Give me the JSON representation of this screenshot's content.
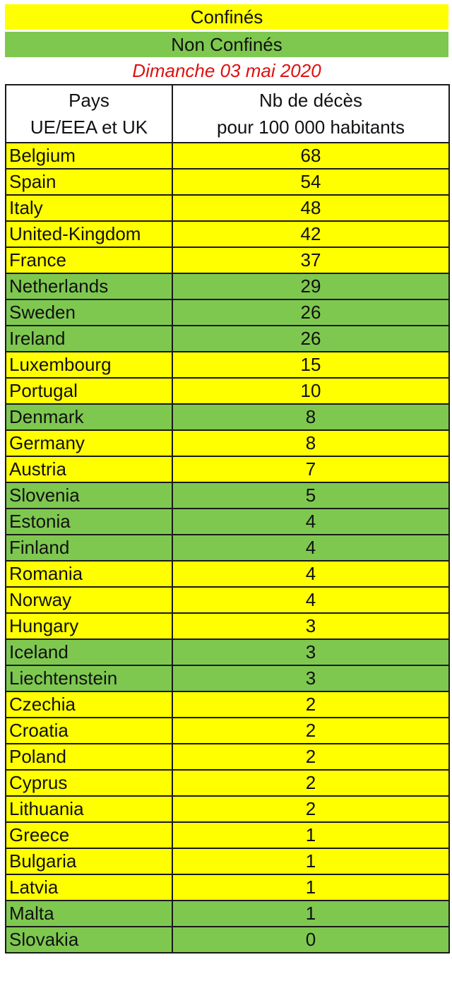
{
  "legend": {
    "confined_label": "Confinés",
    "not_confined_label": "Non Confinés",
    "confined_color": "#ffff00",
    "not_confined_color": "#7ec850"
  },
  "date": "Dimanche 03 mai 2020",
  "table": {
    "header_country_line1": "Pays",
    "header_country_line2": "UE/EEA et UK",
    "header_value_line1": "Nb de décès",
    "header_value_line2": "pour 100 000 habitants",
    "rows": [
      {
        "country": "Belgium",
        "deaths": "68",
        "status": "confined"
      },
      {
        "country": "Spain",
        "deaths": "54",
        "status": "confined"
      },
      {
        "country": "Italy",
        "deaths": "48",
        "status": "confined"
      },
      {
        "country": "United-Kingdom",
        "deaths": "42",
        "status": "confined"
      },
      {
        "country": "France",
        "deaths": "37",
        "status": "confined"
      },
      {
        "country": "Netherlands",
        "deaths": "29",
        "status": "not-confined"
      },
      {
        "country": "Sweden",
        "deaths": "26",
        "status": "not-confined"
      },
      {
        "country": "Ireland",
        "deaths": "26",
        "status": "not-confined"
      },
      {
        "country": "Luxembourg",
        "deaths": "15",
        "status": "confined"
      },
      {
        "country": "Portugal",
        "deaths": "10",
        "status": "confined"
      },
      {
        "country": "Denmark",
        "deaths": "8",
        "status": "not-confined"
      },
      {
        "country": "Germany",
        "deaths": "8",
        "status": "confined"
      },
      {
        "country": "Austria",
        "deaths": "7",
        "status": "confined"
      },
      {
        "country": "Slovenia",
        "deaths": "5",
        "status": "not-confined"
      },
      {
        "country": "Estonia",
        "deaths": "4",
        "status": "not-confined"
      },
      {
        "country": "Finland",
        "deaths": "4",
        "status": "not-confined"
      },
      {
        "country": "Romania",
        "deaths": "4",
        "status": "confined"
      },
      {
        "country": "Norway",
        "deaths": "4",
        "status": "confined"
      },
      {
        "country": "Hungary",
        "deaths": "3",
        "status": "confined"
      },
      {
        "country": "Iceland",
        "deaths": "3",
        "status": "not-confined"
      },
      {
        "country": "Liechtenstein",
        "deaths": "3",
        "status": "not-confined"
      },
      {
        "country": "Czechia",
        "deaths": "2",
        "status": "confined"
      },
      {
        "country": "Croatia",
        "deaths": "2",
        "status": "confined"
      },
      {
        "country": "Poland",
        "deaths": "2",
        "status": "confined"
      },
      {
        "country": "Cyprus",
        "deaths": "2",
        "status": "confined"
      },
      {
        "country": "Lithuania",
        "deaths": "2",
        "status": "confined"
      },
      {
        "country": "Greece",
        "deaths": "1",
        "status": "confined"
      },
      {
        "country": "Bulgaria",
        "deaths": "1",
        "status": "confined"
      },
      {
        "country": "Latvia",
        "deaths": "1",
        "status": "confined"
      },
      {
        "country": "Malta",
        "deaths": "1",
        "status": "not-confined"
      },
      {
        "country": "Slovakia",
        "deaths": "0",
        "status": "not-confined"
      }
    ]
  }
}
